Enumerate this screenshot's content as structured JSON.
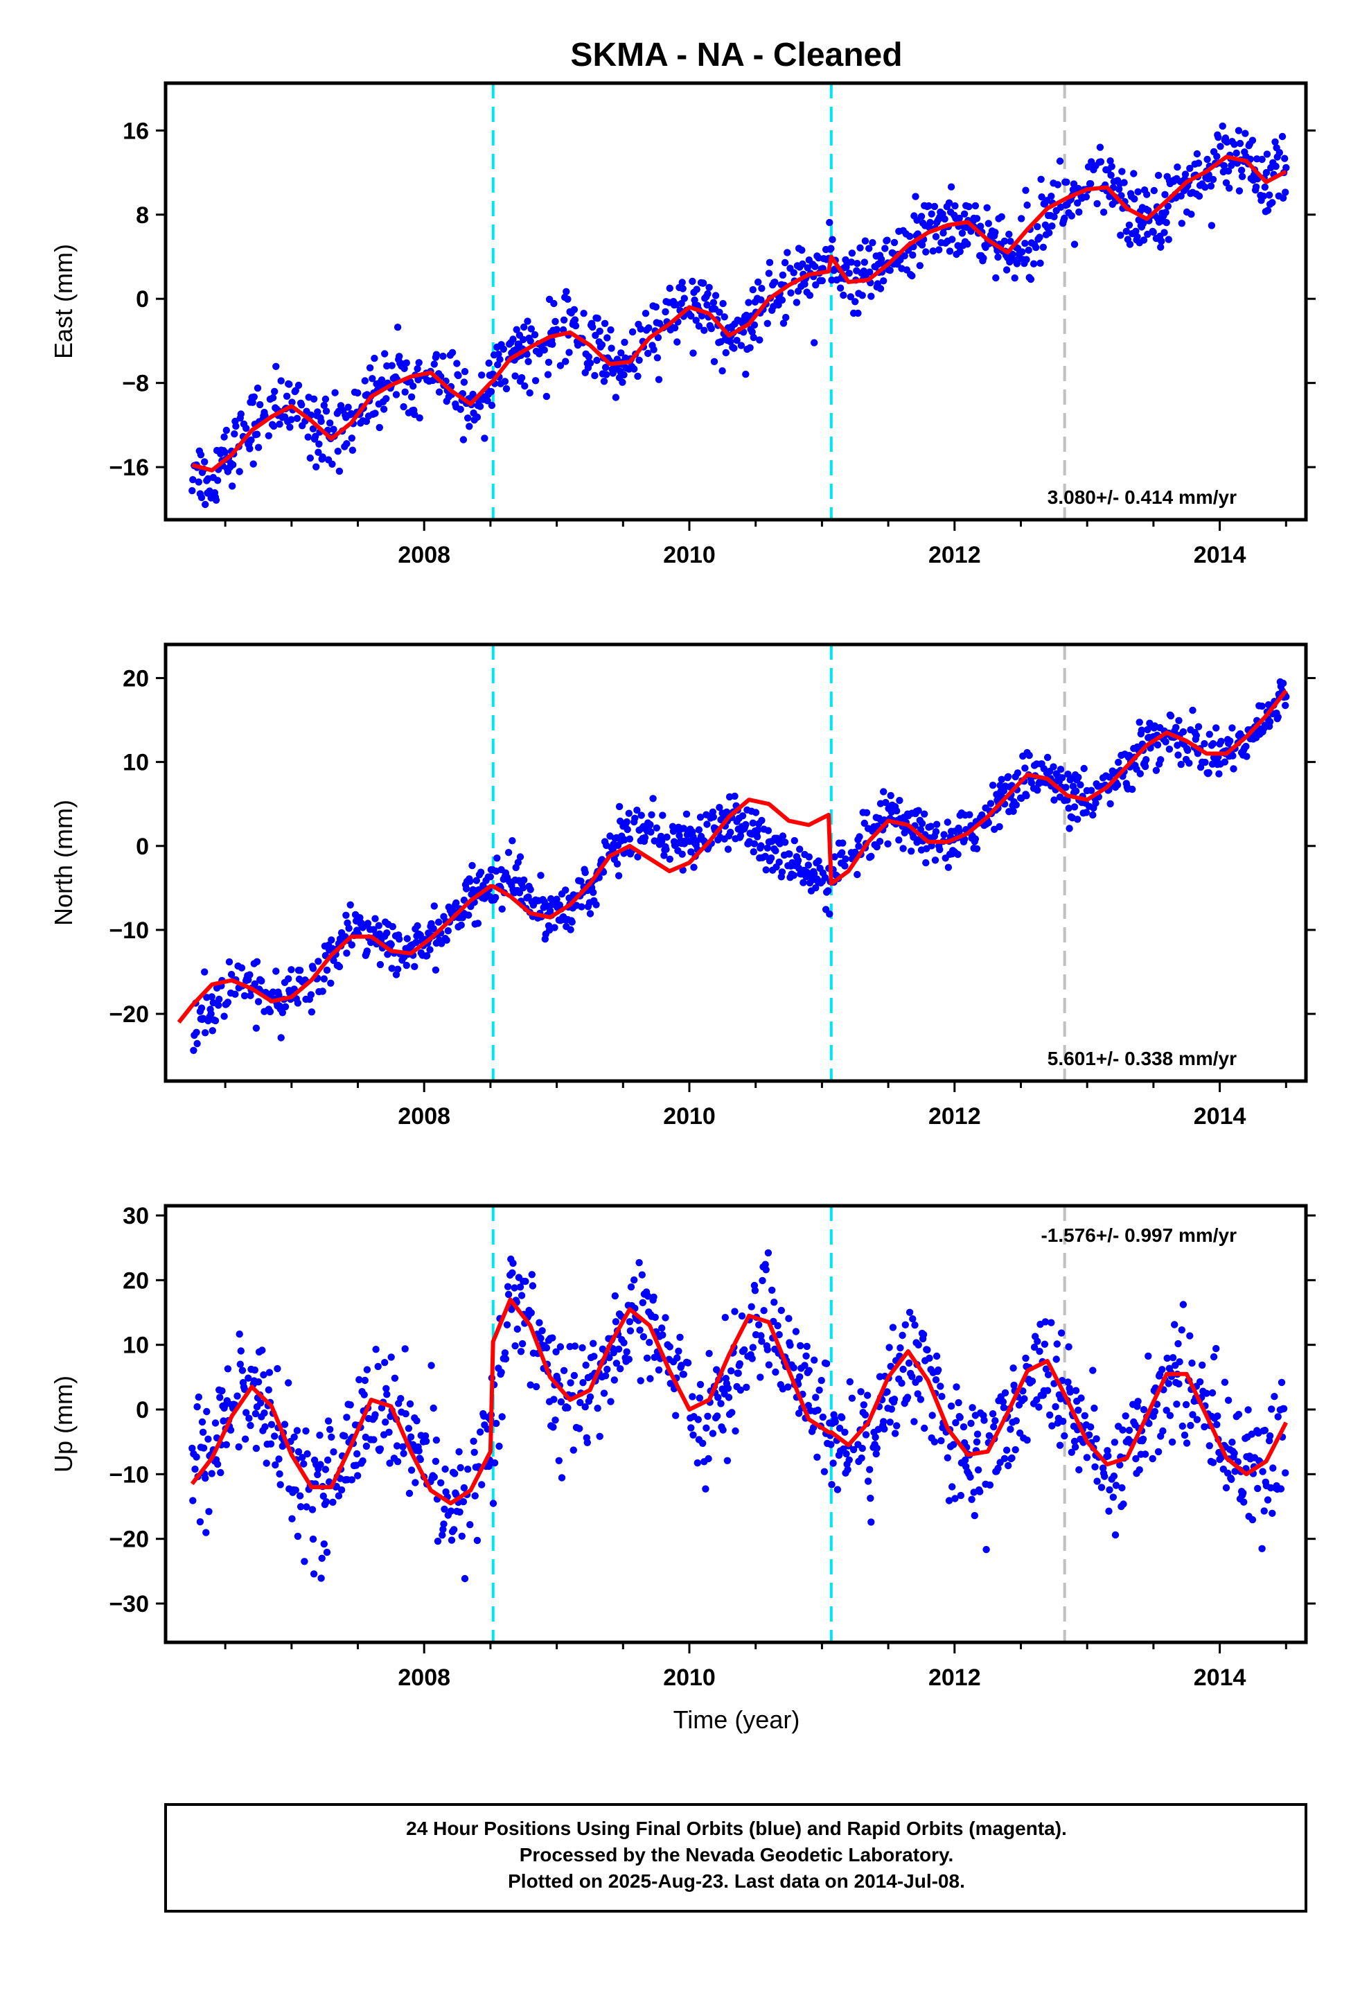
{
  "title": "SKMA  - NA - Cleaned",
  "time_axis_label": "Time (year)",
  "caption": {
    "lines": [
      "24 Hour Positions Using Final Orbits (blue) and Rapid Orbits (magenta).",
      "Processed by the Nevada Geodetic Laboratory.",
      "Plotted on 2025-Aug-23. Last data on 2014-Jul-08."
    ]
  },
  "colors": {
    "data_points": "#0000ff",
    "model_fit": "#ff0000",
    "offset_equipment": "#00e5ee",
    "offset_other": "#c0c0c0",
    "frame": "#000000"
  },
  "chart_data": [
    {
      "type": "scatter",
      "component": "East",
      "ylabel": "East (mm)",
      "rate_label": "3.080+/- 0.414 mm/yr",
      "xlim": [
        2006.05,
        2014.65
      ],
      "ylim": [
        -21,
        20.5
      ],
      "yticks": [
        -16,
        -8,
        0,
        8,
        16
      ],
      "xticks": [
        2008,
        2010,
        2012,
        2014
      ],
      "offsets": [
        {
          "year": 2008.52,
          "kind": "equipment"
        },
        {
          "year": 2011.07,
          "kind": "equipment"
        },
        {
          "year": 2012.83,
          "kind": "other"
        }
      ],
      "rate": 3.08,
      "series": [
        {
          "role": "positions",
          "x": [
            2006.25,
            2006.4,
            2006.55,
            2006.7,
            2006.85,
            2007.0,
            2007.15,
            2007.3,
            2007.45,
            2007.6,
            2007.75,
            2007.9,
            2008.05,
            2008.2,
            2008.35,
            2008.5,
            2008.65,
            2008.8,
            2008.95,
            2009.1,
            2009.25,
            2009.4,
            2009.55,
            2009.7,
            2009.85,
            2010.0,
            2010.15,
            2010.3,
            2010.45,
            2010.6,
            2010.75,
            2010.9,
            2011.05,
            2011.2,
            2011.35,
            2011.5,
            2011.65,
            2011.8,
            2011.95,
            2012.1,
            2012.25,
            2012.4,
            2012.55,
            2012.7,
            2012.85,
            2013.0,
            2013.15,
            2013.3,
            2013.45,
            2013.6,
            2013.75,
            2013.9,
            2014.05,
            2014.2,
            2014.35,
            2014.5
          ],
          "y": [
            -16.5,
            -16.6,
            -14.5,
            -12.0,
            -10.8,
            -10.0,
            -11.5,
            -13.2,
            -11.5,
            -9.0,
            -8.0,
            -7.2,
            -6.8,
            -8.5,
            -9.8,
            -7.8,
            -5.5,
            -4.5,
            -3.5,
            -3.0,
            -4.2,
            -6.0,
            -5.8,
            -3.5,
            -2.2,
            -0.6,
            -1.2,
            -3.3,
            -2.2,
            0.2,
            1.5,
            2.5,
            2.8,
            1.4,
            1.6,
            3.2,
            5.0,
            6.2,
            7.0,
            7.3,
            5.5,
            4.3,
            6.5,
            8.5,
            9.5,
            10.3,
            10.5,
            8.5,
            7.5,
            9.2,
            11.0,
            12.0,
            13.5,
            13.0,
            11.0,
            12.0
          ]
        },
        {
          "role": "model",
          "x": [
            2006.25,
            2006.4,
            2006.55,
            2006.7,
            2006.85,
            2007.0,
            2007.15,
            2007.3,
            2007.45,
            2007.6,
            2007.75,
            2007.9,
            2008.05,
            2008.2,
            2008.35,
            2008.5,
            2008.52,
            2008.65,
            2008.8,
            2008.95,
            2009.1,
            2009.25,
            2009.4,
            2009.55,
            2009.7,
            2009.85,
            2010.0,
            2010.15,
            2010.3,
            2010.45,
            2010.6,
            2010.75,
            2010.9,
            2011.05,
            2011.07,
            2011.2,
            2011.35,
            2011.5,
            2011.65,
            2011.8,
            2011.95,
            2012.1,
            2012.25,
            2012.4,
            2012.55,
            2012.7,
            2012.85,
            2013.0,
            2013.15,
            2013.3,
            2013.45,
            2013.6,
            2013.75,
            2013.9,
            2014.05,
            2014.2,
            2014.35,
            2014.5
          ],
          "y": [
            -15.8,
            -16.3,
            -14.8,
            -12.5,
            -11.2,
            -10.2,
            -11.6,
            -13.3,
            -11.8,
            -9.3,
            -8.2,
            -7.4,
            -7.0,
            -8.7,
            -10.0,
            -8.0,
            -7.8,
            -5.7,
            -4.6,
            -3.6,
            -3.2,
            -4.4,
            -6.2,
            -6.0,
            -3.7,
            -2.4,
            -0.8,
            -1.4,
            -3.5,
            -2.4,
            0.0,
            1.3,
            2.3,
            2.6,
            4.0,
            1.6,
            1.8,
            3.3,
            5.1,
            6.3,
            7.0,
            7.3,
            5.6,
            4.4,
            6.6,
            8.6,
            9.6,
            10.4,
            10.6,
            8.6,
            7.6,
            9.3,
            11.1,
            12.1,
            13.5,
            13.1,
            11.1,
            12.1
          ]
        }
      ]
    },
    {
      "type": "scatter",
      "component": "North",
      "ylabel": "North (mm)",
      "rate_label": "5.601+/- 0.338 mm/yr",
      "xlim": [
        2006.05,
        2014.65
      ],
      "ylim": [
        -28,
        24
      ],
      "yticks": [
        -20,
        -10,
        0,
        10,
        20
      ],
      "xticks": [
        2008,
        2010,
        2012,
        2014
      ],
      "offsets": [
        {
          "year": 2008.52,
          "kind": "equipment"
        },
        {
          "year": 2011.07,
          "kind": "equipment"
        },
        {
          "year": 2012.83,
          "kind": "other"
        }
      ],
      "rate": 5.601,
      "series": [
        {
          "role": "positions",
          "x": [
            2006.25,
            2006.4,
            2006.55,
            2006.7,
            2006.85,
            2007.0,
            2007.15,
            2007.3,
            2007.45,
            2007.6,
            2007.75,
            2007.9,
            2008.05,
            2008.2,
            2008.35,
            2008.5,
            2008.65,
            2008.8,
            2008.95,
            2009.1,
            2009.25,
            2009.4,
            2009.55,
            2009.7,
            2009.85,
            2010.0,
            2010.15,
            2010.3,
            2010.45,
            2010.6,
            2010.75,
            2010.9,
            2011.05,
            2011.2,
            2011.35,
            2011.5,
            2011.65,
            2011.8,
            2011.95,
            2012.1,
            2012.25,
            2012.4,
            2012.55,
            2012.7,
            2012.85,
            2013.0,
            2013.15,
            2013.3,
            2013.45,
            2013.6,
            2013.75,
            2013.9,
            2014.05,
            2014.2,
            2014.35,
            2014.5
          ],
          "y": [
            -22.0,
            -19.0,
            -16.5,
            -17.0,
            -18.5,
            -18.0,
            -16.0,
            -13.0,
            -10.5,
            -10.5,
            -12.0,
            -12.5,
            -11.0,
            -9.0,
            -6.5,
            -4.5,
            -4.0,
            -6.5,
            -8.0,
            -7.0,
            -4.5,
            -1.0,
            2.0,
            1.5,
            0.5,
            0.5,
            1.5,
            3.0,
            2.0,
            -0.5,
            -2.0,
            -3.5,
            -4.5,
            -2.0,
            0.5,
            3.0,
            2.5,
            0.5,
            0.5,
            1.5,
            3.5,
            6.0,
            8.5,
            8.0,
            6.0,
            5.5,
            7.0,
            9.5,
            12.0,
            13.5,
            12.5,
            11.0,
            11.0,
            13.0,
            15.5,
            18.5
          ]
        },
        {
          "role": "model",
          "x": [
            2006.15,
            2006.25,
            2006.4,
            2006.55,
            2006.7,
            2006.85,
            2007.0,
            2007.15,
            2007.3,
            2007.45,
            2007.6,
            2007.75,
            2007.9,
            2008.05,
            2008.2,
            2008.35,
            2008.5,
            2008.52,
            2008.65,
            2008.8,
            2008.95,
            2009.1,
            2009.25,
            2009.4,
            2009.55,
            2009.7,
            2009.85,
            2010.0,
            2010.15,
            2010.3,
            2010.45,
            2010.6,
            2010.75,
            2010.9,
            2011.05,
            2011.07,
            2011.2,
            2011.35,
            2011.5,
            2011.65,
            2011.8,
            2011.95,
            2012.1,
            2012.25,
            2012.4,
            2012.55,
            2012.7,
            2012.85,
            2013.0,
            2013.15,
            2013.3,
            2013.45,
            2013.6,
            2013.75,
            2013.9,
            2014.05,
            2014.2,
            2014.35,
            2014.5
          ],
          "y": [
            -21.0,
            -19.0,
            -16.5,
            -16.0,
            -17.0,
            -18.5,
            -18.0,
            -16.0,
            -13.0,
            -10.8,
            -10.8,
            -12.5,
            -12.8,
            -11.0,
            -8.8,
            -6.5,
            -4.8,
            -4.8,
            -6.0,
            -8.0,
            -8.5,
            -7.0,
            -4.5,
            -1.2,
            0.0,
            -1.5,
            -3.0,
            -2.0,
            0.5,
            3.5,
            5.5,
            5.0,
            3.0,
            2.5,
            3.7,
            -4.5,
            -3.0,
            0.5,
            3.0,
            2.5,
            0.5,
            0.5,
            1.5,
            3.5,
            6.0,
            8.5,
            8.0,
            6.0,
            5.5,
            7.0,
            9.5,
            12.0,
            13.5,
            12.5,
            11.0,
            11.0,
            13.0,
            15.5,
            18.5
          ]
        }
      ]
    },
    {
      "type": "scatter",
      "component": "Up",
      "ylabel": "Up (mm)",
      "rate_label": "-1.576+/- 0.997 mm/yr",
      "xlim": [
        2006.05,
        2014.65
      ],
      "ylim": [
        -36,
        31.5
      ],
      "yticks": [
        -30,
        -20,
        -10,
        0,
        10,
        20,
        30
      ],
      "xticks": [
        2008,
        2010,
        2012,
        2014
      ],
      "offsets": [
        {
          "year": 2008.52,
          "kind": "equipment"
        },
        {
          "year": 2011.07,
          "kind": "equipment"
        },
        {
          "year": 2012.83,
          "kind": "other"
        }
      ],
      "rate": -1.576,
      "series": [
        {
          "role": "positions",
          "x": [
            2006.25,
            2006.4,
            2006.55,
            2006.7,
            2006.85,
            2007.0,
            2007.15,
            2007.3,
            2007.45,
            2007.6,
            2007.75,
            2007.9,
            2008.05,
            2008.2,
            2008.35,
            2008.5,
            2008.65,
            2008.8,
            2008.95,
            2009.1,
            2009.25,
            2009.4,
            2009.55,
            2009.7,
            2009.85,
            2010.0,
            2010.15,
            2010.3,
            2010.45,
            2010.6,
            2010.75,
            2010.9,
            2011.05,
            2011.2,
            2011.35,
            2011.5,
            2011.65,
            2011.8,
            2011.95,
            2012.1,
            2012.25,
            2012.4,
            2012.55,
            2012.7,
            2012.85,
            2013.0,
            2013.15,
            2013.3,
            2013.45,
            2013.6,
            2013.75,
            2013.9,
            2014.05,
            2014.2,
            2014.35,
            2014.5
          ],
          "y": [
            -11.0,
            -7.0,
            0.5,
            3.0,
            -1.5,
            -8.5,
            -12.5,
            -11.5,
            -5.0,
            0.5,
            1.0,
            -4.5,
            -11.0,
            -14.0,
            -13.5,
            -6.0,
            17.0,
            14.0,
            6.0,
            1.5,
            2.0,
            8.5,
            15.0,
            14.0,
            7.0,
            1.0,
            -0.5,
            4.0,
            11.5,
            14.0,
            8.5,
            2.0,
            -2.0,
            -5.5,
            -4.0,
            3.0,
            8.5,
            5.0,
            -2.5,
            -7.0,
            -7.5,
            -2.5,
            4.0,
            7.5,
            2.0,
            -5.0,
            -8.5,
            -8.0,
            -2.0,
            5.0,
            5.5,
            -0.5,
            -7.0,
            -10.0,
            -8.5,
            -2.5
          ]
        },
        {
          "role": "model",
          "x": [
            2006.25,
            2006.4,
            2006.55,
            2006.7,
            2006.85,
            2007.0,
            2007.15,
            2007.3,
            2007.45,
            2007.6,
            2007.75,
            2007.9,
            2008.05,
            2008.2,
            2008.35,
            2008.5,
            2008.52,
            2008.65,
            2008.8,
            2008.95,
            2009.1,
            2009.25,
            2009.4,
            2009.55,
            2009.7,
            2009.85,
            2010.0,
            2010.15,
            2010.3,
            2010.45,
            2010.6,
            2010.75,
            2010.9,
            2011.05,
            2011.07,
            2011.2,
            2011.35,
            2011.5,
            2011.65,
            2011.8,
            2011.95,
            2012.1,
            2012.25,
            2012.4,
            2012.55,
            2012.7,
            2012.85,
            2013.0,
            2013.15,
            2013.3,
            2013.45,
            2013.6,
            2013.75,
            2013.9,
            2014.05,
            2014.2,
            2014.35,
            2014.5
          ],
          "y": [
            -11.5,
            -7.5,
            -1.0,
            3.5,
            0.5,
            -7.0,
            -12.0,
            -12.0,
            -5.5,
            1.5,
            0.5,
            -6.5,
            -12.5,
            -14.5,
            -12.5,
            -6.5,
            10.5,
            17.0,
            13.0,
            5.0,
            1.5,
            3.0,
            10.0,
            15.5,
            13.0,
            6.0,
            0.0,
            1.5,
            8.5,
            14.5,
            13.5,
            6.0,
            -1.5,
            -3.5,
            -3.5,
            -5.5,
            -2.0,
            5.0,
            9.0,
            4.5,
            -3.0,
            -7.0,
            -6.5,
            -0.5,
            6.0,
            7.5,
            1.5,
            -5.0,
            -8.5,
            -7.5,
            -1.0,
            5.5,
            5.5,
            -1.0,
            -7.5,
            -10.0,
            -8.0,
            -2.0
          ]
        }
      ]
    }
  ]
}
